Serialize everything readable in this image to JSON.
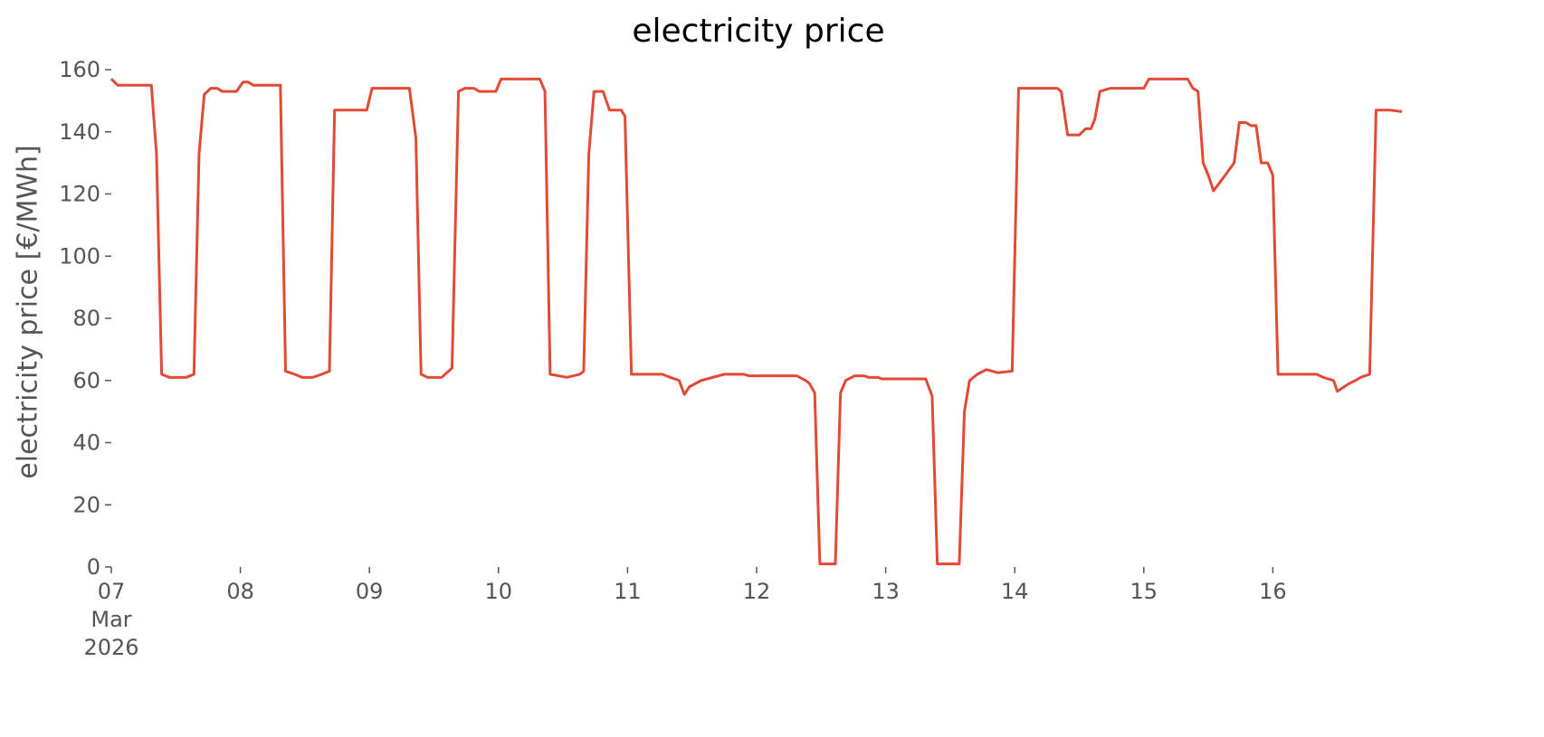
{
  "chart_data": {
    "type": "line",
    "title": "electricity price",
    "ylabel": "electricity price [€/MWh]",
    "x": [
      7.0,
      7.05,
      7.31,
      7.35,
      7.39,
      7.45,
      7.5,
      7.58,
      7.64,
      7.68,
      7.72,
      7.77,
      7.82,
      7.86,
      7.97,
      8.02,
      8.06,
      8.1,
      8.31,
      8.35,
      8.42,
      8.48,
      8.56,
      8.63,
      8.69,
      8.73,
      8.98,
      9.02,
      9.31,
      9.36,
      9.4,
      9.45,
      9.56,
      9.64,
      9.69,
      9.74,
      9.81,
      9.85,
      9.98,
      10.02,
      10.32,
      10.36,
      10.4,
      10.53,
      10.63,
      10.66,
      10.7,
      10.74,
      10.81,
      10.86,
      10.95,
      10.98,
      11.03,
      11.27,
      11.33,
      11.4,
      11.44,
      11.48,
      11.57,
      11.75,
      11.9,
      11.94,
      12.31,
      12.38,
      12.41,
      12.45,
      12.49,
      12.61,
      12.65,
      12.69,
      12.76,
      12.83,
      12.87,
      12.94,
      12.97,
      13.31,
      13.36,
      13.4,
      13.57,
      13.61,
      13.65,
      13.71,
      13.78,
      13.87,
      13.98,
      14.03,
      14.33,
      14.36,
      14.41,
      14.5,
      14.55,
      14.59,
      14.62,
      14.66,
      14.74,
      15.0,
      15.04,
      15.34,
      15.38,
      15.42,
      15.46,
      15.5,
      15.54,
      15.63,
      15.7,
      15.74,
      15.79,
      15.83,
      15.87,
      15.91,
      15.96,
      16.0,
      16.04,
      16.34,
      16.39,
      16.47,
      16.5,
      16.59,
      16.64,
      16.68,
      16.75,
      16.8,
      16.9,
      17.0
    ],
    "series": [
      {
        "name": "electricity price",
        "color": "#e24a33",
        "values": [
          157,
          155,
          155,
          133,
          62,
          61,
          61,
          61,
          62,
          133,
          152,
          154,
          154,
          153,
          153,
          156,
          156,
          155,
          155,
          63,
          62,
          61,
          61,
          62,
          63,
          147,
          147,
          154,
          154,
          138,
          62,
          61,
          61,
          64,
          153,
          154,
          154,
          153,
          153,
          157,
          157,
          153,
          62,
          61,
          62,
          63,
          133,
          153,
          153,
          147,
          147,
          145,
          62,
          62,
          61,
          60,
          55.5,
          58,
          60,
          62,
          62,
          61.5,
          61.5,
          60,
          59,
          56,
          1,
          1,
          56,
          60,
          61.5,
          61.5,
          61,
          61,
          60.5,
          60.5,
          55,
          1,
          1,
          50,
          60,
          62,
          63.5,
          62.5,
          63,
          154,
          154,
          153,
          139,
          139,
          141,
          141,
          144,
          153,
          154,
          154,
          157,
          157,
          154,
          153,
          130,
          126,
          121,
          126,
          130,
          143,
          143,
          142,
          142,
          130,
          130,
          126,
          62,
          62,
          61,
          60,
          56.5,
          59,
          60,
          61,
          62,
          147,
          147,
          146.5
        ]
      }
    ],
    "xlim": [
      7,
      17
    ],
    "xticks": [
      {
        "value": 7,
        "label": "07\nMar\n2026"
      },
      {
        "value": 8,
        "label": "08"
      },
      {
        "value": 9,
        "label": "09"
      },
      10,
      11,
      12,
      13,
      14,
      15,
      16
    ],
    "ylim": [
      0,
      160
    ],
    "yticks": [
      0,
      20,
      40,
      60,
      80,
      100,
      120,
      140,
      160
    ],
    "grid": false
  }
}
